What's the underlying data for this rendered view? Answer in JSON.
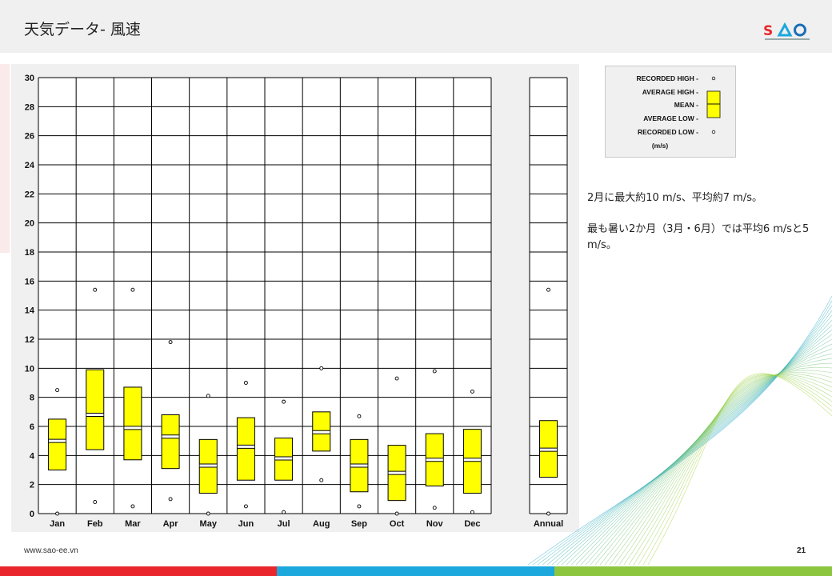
{
  "header": {
    "title": "天気データ- 風速"
  },
  "legend": {
    "recorded_high": "RECORDED HIGH -",
    "average_high": "AVERAGE HIGH -",
    "mean": "MEAN -",
    "average_low": "AVERAGE LOW -",
    "recorded_low": "RECORDED LOW -",
    "unit": "(m/s)"
  },
  "notes": {
    "line1": "2月に最大約10 m/s、平均約7 m/s。",
    "line2": "最も暑い2か月（3月・6月）では平均6 m/sと5 m/s。"
  },
  "footer": {
    "url": "www.sao-ee.vn",
    "page": "21"
  },
  "colors": {
    "box_fill": "#ffff00",
    "bar_red": "#e8262b",
    "bar_blue": "#1ca8dd",
    "bar_green": "#8cc63f",
    "grid": "#000000",
    "panel": "#f0f0f0"
  },
  "chart_data": {
    "type": "box",
    "ylim": [
      0,
      30
    ],
    "yticks": [
      0,
      2,
      4,
      6,
      8,
      10,
      12,
      14,
      16,
      18,
      20,
      22,
      24,
      26,
      28,
      30
    ],
    "categories": [
      "Jan",
      "Feb",
      "Mar",
      "Apr",
      "May",
      "Jun",
      "Jul",
      "Aug",
      "Sep",
      "Oct",
      "Nov",
      "Dec"
    ],
    "annual_label": "Annual",
    "recorded_high": [
      8.5,
      15.4,
      15.4,
      11.8,
      8.1,
      9.0,
      7.7,
      10.0,
      6.7,
      9.3,
      9.8,
      8.4
    ],
    "average_high": [
      6.5,
      9.9,
      8.7,
      6.8,
      5.1,
      6.6,
      5.2,
      7.0,
      5.1,
      4.7,
      5.5,
      5.8
    ],
    "mean": [
      5.0,
      6.8,
      5.9,
      5.3,
      3.3,
      4.6,
      3.8,
      5.6,
      3.3,
      2.8,
      3.7,
      3.7
    ],
    "average_low": [
      3.0,
      4.4,
      3.7,
      3.1,
      1.4,
      2.3,
      2.3,
      4.3,
      1.5,
      0.9,
      1.9,
      1.4
    ],
    "recorded_low": [
      0.0,
      0.8,
      0.5,
      1.0,
      0.0,
      0.5,
      0.1,
      2.3,
      0.5,
      0.0,
      0.4,
      0.1
    ],
    "annual": {
      "recorded_high": 15.4,
      "average_high": 6.4,
      "mean": 4.4,
      "average_low": 2.5,
      "recorded_low": 0.0
    }
  }
}
